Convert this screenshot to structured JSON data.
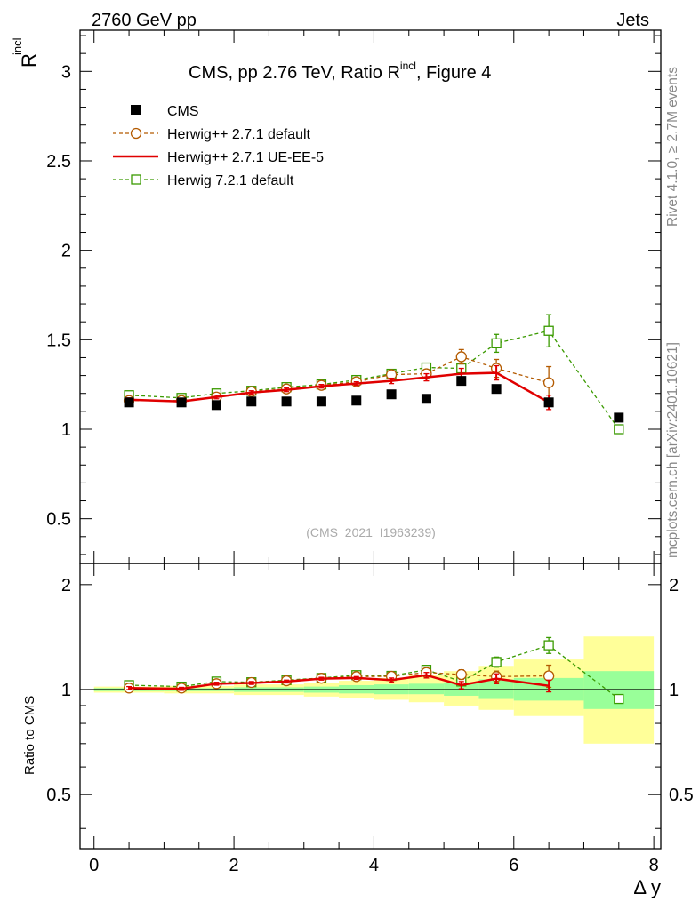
{
  "header": {
    "left": "2760 GeV pp",
    "right": "Jets"
  },
  "side_text": {
    "rivet": "Rivet 4.1.0, ≥ 2.7M events",
    "mcplots": "mcplots.cern.ch [arXiv:2401.10621]"
  },
  "watermark": "(CMS_2021_I1963239)",
  "colors": {
    "cms": "#000000",
    "herwig_default": "#b35a00",
    "herwig_ueee5": "#e00000",
    "herwig72": "#3a9a00",
    "band_inner": "#99ff99",
    "band_outer": "#ffff99"
  },
  "chart_data": [
    {
      "type": "scatter",
      "title_main": "CMS, pp 2.76 TeV, Ratio R",
      "title_sup": "incl",
      "title_tail": ", Figure 4",
      "ylabel_main": "R",
      "ylabel_sup": "incl",
      "xlim": [
        -0.2,
        8.1
      ],
      "ylim": [
        0.25,
        3.23
      ],
      "yticks": [
        0.5,
        1,
        1.5,
        2,
        2.5,
        3
      ],
      "ytick_labels": [
        "0.5",
        "1",
        "1.5",
        "2",
        "2.5",
        "3"
      ],
      "legend_position": "top-left",
      "series": [
        {
          "name": "CMS",
          "style": "data",
          "x": [
            0.5,
            1.25,
            1.75,
            2.25,
            2.75,
            3.25,
            3.75,
            4.25,
            4.75,
            5.25,
            5.75,
            6.5,
            7.5
          ],
          "y": [
            1.15,
            1.15,
            1.135,
            1.155,
            1.155,
            1.155,
            1.16,
            1.195,
            1.17,
            1.27,
            1.225,
            1.15,
            1.065
          ]
        },
        {
          "name": "Herwig++ 2.7.1 default",
          "style": "circle-dashed",
          "x": [
            0.5,
            1.25,
            1.75,
            2.25,
            2.75,
            3.25,
            3.75,
            4.25,
            4.75,
            5.25,
            5.75,
            6.5
          ],
          "y": [
            1.16,
            1.16,
            1.18,
            1.21,
            1.225,
            1.245,
            1.265,
            1.305,
            1.31,
            1.405,
            1.34,
            1.26
          ],
          "err": [
            0.01,
            0.01,
            0.01,
            0.01,
            0.01,
            0.01,
            0.01,
            0.015,
            0.015,
            0.04,
            0.05,
            0.09
          ]
        },
        {
          "name": "Herwig++ 2.7.1 UE-EE-5",
          "style": "line-solid",
          "x": [
            0.5,
            1.25,
            1.75,
            2.25,
            2.75,
            3.25,
            3.75,
            4.25,
            4.75,
            5.25,
            5.75,
            6.5
          ],
          "y": [
            1.165,
            1.155,
            1.18,
            1.205,
            1.22,
            1.24,
            1.255,
            1.27,
            1.29,
            1.31,
            1.315,
            1.15
          ],
          "err": [
            0.01,
            0.01,
            0.01,
            0.01,
            0.01,
            0.01,
            0.01,
            0.015,
            0.02,
            0.03,
            0.04,
            0.04
          ]
        },
        {
          "name": "Herwig 7.2.1 default",
          "style": "square-dashed",
          "x": [
            0.5,
            1.25,
            1.75,
            2.25,
            2.75,
            3.25,
            3.75,
            4.25,
            4.75,
            5.25,
            5.75,
            6.5,
            7.5
          ],
          "y": [
            1.19,
            1.175,
            1.2,
            1.215,
            1.235,
            1.25,
            1.275,
            1.31,
            1.345,
            1.34,
            1.48,
            1.55,
            1.0
          ],
          "err": [
            0.01,
            0.01,
            0.01,
            0.01,
            0.01,
            0.01,
            0.01,
            0.015,
            0.02,
            0.03,
            0.05,
            0.09,
            0.02
          ]
        }
      ]
    },
    {
      "type": "scatter",
      "ylabel": "Ratio to CMS",
      "xlabel": "Δ y",
      "xlim": [
        -0.2,
        8.1
      ],
      "xticks": [
        0,
        2,
        4,
        6,
        8
      ],
      "xtick_labels": [
        "0",
        "2",
        "4",
        "6",
        "8"
      ],
      "ylim": [
        0.35,
        2.3
      ],
      "ylog": true,
      "yticks": [
        0.5,
        1,
        2
      ],
      "ytick_labels": [
        "0.5",
        "1",
        "2"
      ],
      "reference": 1,
      "bands": {
        "edges": [
          0,
          1,
          2,
          3,
          3.5,
          4,
          4.5,
          5,
          5.5,
          6,
          7,
          8
        ],
        "inner": [
          [
            0.99,
            1.01
          ],
          [
            0.99,
            1.01
          ],
          [
            0.985,
            1.015
          ],
          [
            0.98,
            1.02
          ],
          [
            0.975,
            1.03
          ],
          [
            0.97,
            1.035
          ],
          [
            0.97,
            1.04
          ],
          [
            0.96,
            1.05
          ],
          [
            0.94,
            1.07
          ],
          [
            0.93,
            1.08
          ],
          [
            0.88,
            1.13
          ]
        ],
        "outer": [
          [
            0.98,
            1.02
          ],
          [
            0.975,
            1.025
          ],
          [
            0.965,
            1.035
          ],
          [
            0.955,
            1.045
          ],
          [
            0.945,
            1.06
          ],
          [
            0.935,
            1.08
          ],
          [
            0.92,
            1.1
          ],
          [
            0.9,
            1.13
          ],
          [
            0.875,
            1.17
          ],
          [
            0.84,
            1.22
          ],
          [
            0.7,
            1.42
          ]
        ]
      },
      "series": [
        {
          "name": "Herwig++ 2.7.1 default",
          "style": "circle-dashed",
          "x": [
            0.5,
            1.25,
            1.75,
            2.25,
            2.75,
            3.25,
            3.75,
            4.25,
            4.75,
            5.25,
            5.75,
            6.5
          ],
          "y": [
            1.01,
            1.01,
            1.04,
            1.048,
            1.06,
            1.078,
            1.09,
            1.092,
            1.12,
            1.105,
            1.09,
            1.095
          ],
          "err": [
            0.01,
            0.01,
            0.01,
            0.01,
            0.01,
            0.01,
            0.01,
            0.015,
            0.015,
            0.035,
            0.04,
            0.08
          ]
        },
        {
          "name": "Herwig++ 2.7.1 UE-EE-5",
          "style": "line-solid",
          "x": [
            0.5,
            1.25,
            1.75,
            2.25,
            2.75,
            3.25,
            3.75,
            4.25,
            4.75,
            5.25,
            5.75,
            6.5
          ],
          "y": [
            1.01,
            1.005,
            1.04,
            1.045,
            1.055,
            1.075,
            1.08,
            1.065,
            1.1,
            1.03,
            1.075,
            1.025
          ],
          "err": [
            0.01,
            0.01,
            0.01,
            0.01,
            0.01,
            0.01,
            0.01,
            0.015,
            0.02,
            0.025,
            0.035,
            0.04
          ]
        },
        {
          "name": "Herwig 7.2.1 default",
          "style": "square-dashed",
          "x": [
            0.5,
            1.25,
            1.75,
            2.25,
            2.75,
            3.25,
            3.75,
            4.25,
            4.75,
            5.25,
            5.75,
            6.5,
            7.5
          ],
          "y": [
            1.03,
            1.02,
            1.055,
            1.05,
            1.065,
            1.08,
            1.1,
            1.095,
            1.14,
            1.055,
            1.2,
            1.34,
            0.94
          ],
          "err": [
            0.01,
            0.01,
            0.01,
            0.01,
            0.01,
            0.01,
            0.01,
            0.015,
            0.02,
            0.025,
            0.04,
            0.07,
            0.02
          ]
        }
      ]
    }
  ]
}
